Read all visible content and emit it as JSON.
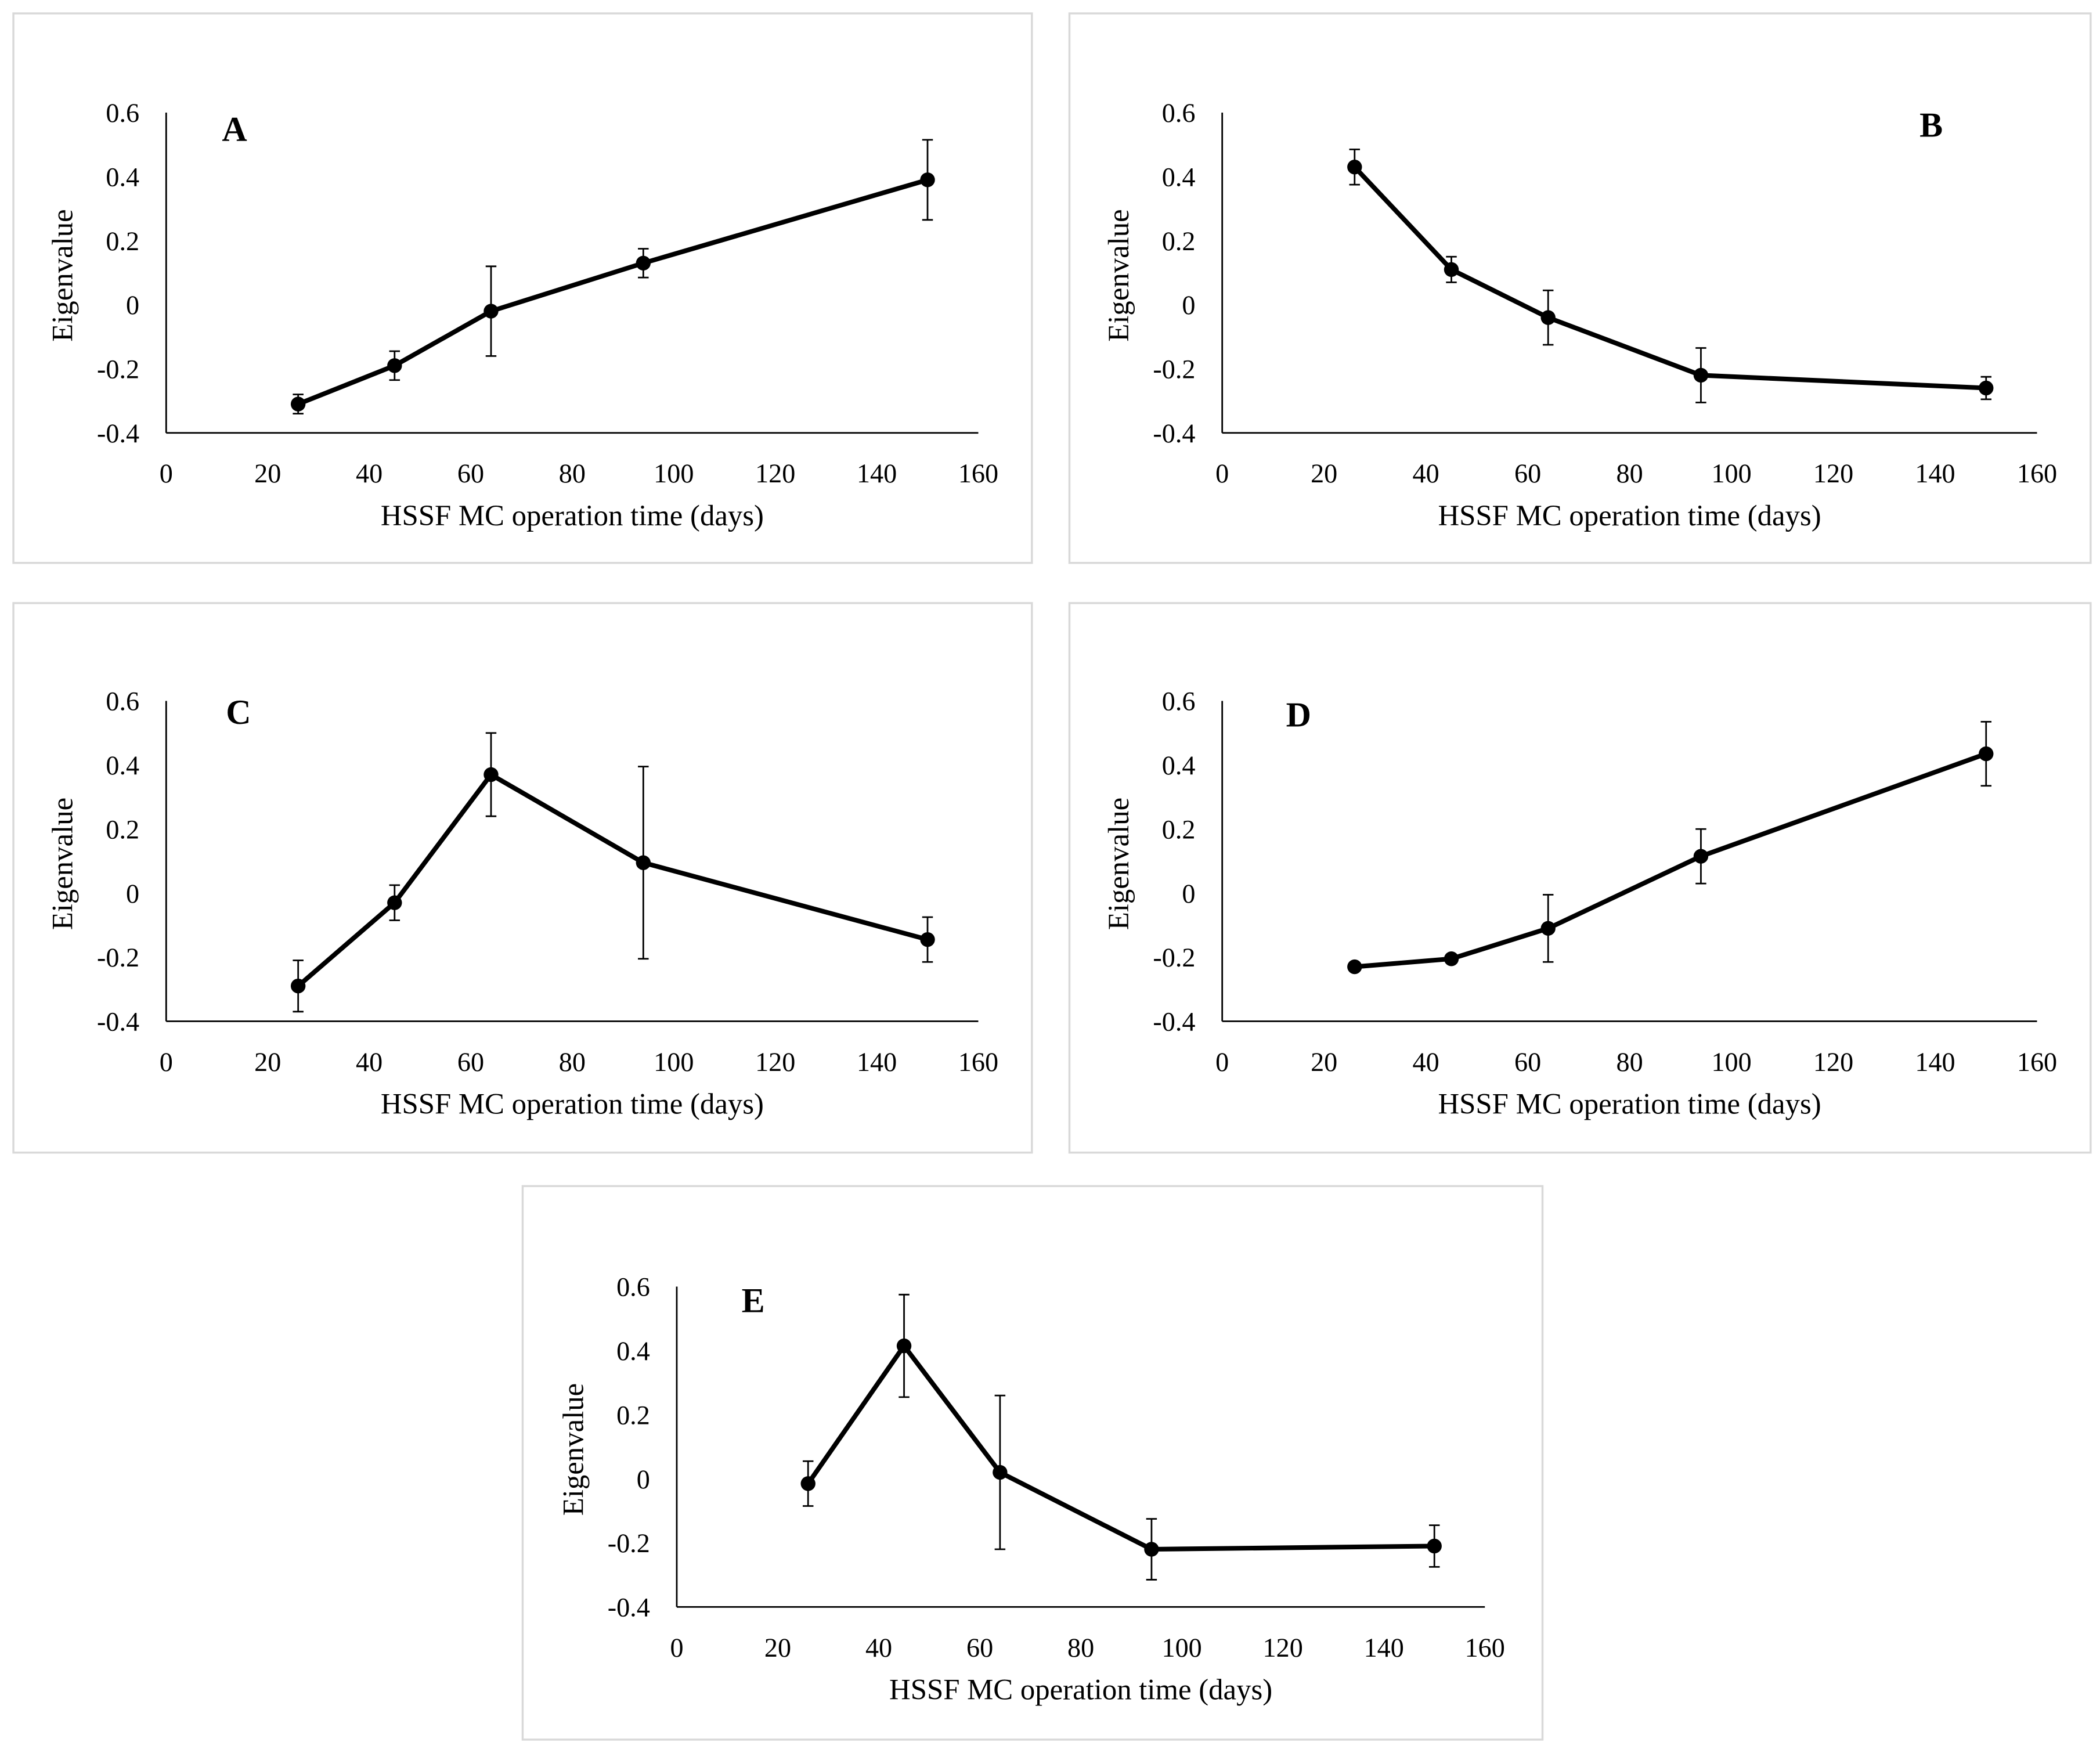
{
  "chart_data": [
    {
      "type": "line",
      "panel_label": "A",
      "x_label": "HSSF MC operation time (days)",
      "y_label": "Eigenvalue",
      "x": [
        26,
        45,
        64,
        94,
        150
      ],
      "values": [
        -0.31,
        -0.19,
        -0.02,
        0.13,
        0.39
      ],
      "errors": [
        0.03,
        0.045,
        0.14,
        0.045,
        0.125
      ],
      "color": "#000000",
      "xlim": [
        0,
        160
      ],
      "xticks": [
        0,
        20,
        40,
        60,
        80,
        100,
        120,
        140,
        160
      ],
      "ylim": [
        -0.4,
        0.6
      ],
      "yticks": [
        -0.4,
        -0.2,
        0,
        0.2,
        0.4,
        0.6
      ]
    },
    {
      "type": "line",
      "panel_label": "B",
      "x_label": "HSSF MC operation time (days)",
      "y_label": "Eigenvalue",
      "x": [
        26,
        45,
        64,
        94,
        150
      ],
      "values": [
        0.43,
        0.11,
        -0.04,
        -0.22,
        -0.26
      ],
      "errors": [
        0.055,
        0.04,
        0.085,
        0.085,
        0.035
      ],
      "color": "#000000",
      "xlim": [
        0,
        160
      ],
      "xticks": [
        0,
        20,
        40,
        60,
        80,
        100,
        120,
        140,
        160
      ],
      "ylim": [
        -0.4,
        0.6
      ],
      "yticks": [
        -0.4,
        -0.2,
        0,
        0.2,
        0.4,
        0.6
      ]
    },
    {
      "type": "line",
      "panel_label": "C",
      "x_label": "HSSF MC operation time (days)",
      "y_label": "Eigenvalue",
      "x": [
        26,
        45,
        64,
        94,
        150
      ],
      "values": [
        -0.29,
        -0.03,
        0.37,
        0.095,
        -0.145
      ],
      "errors": [
        0.08,
        0.055,
        0.13,
        0.3,
        0.07
      ],
      "color": "#000000",
      "xlim": [
        0,
        160
      ],
      "xticks": [
        0,
        20,
        40,
        60,
        80,
        100,
        120,
        140,
        160
      ],
      "ylim": [
        -0.4,
        0.6
      ],
      "yticks": [
        -0.4,
        -0.2,
        0,
        0.2,
        0.4,
        0.6
      ]
    },
    {
      "type": "line",
      "panel_label": "D",
      "x_label": "HSSF MC operation time (days)",
      "y_label": "Eigenvalue",
      "x": [
        26,
        45,
        64,
        94,
        150
      ],
      "values": [
        -0.23,
        -0.205,
        -0.11,
        0.115,
        0.435
      ],
      "errors": [
        0.01,
        0.01,
        0.105,
        0.085,
        0.1
      ],
      "color": "#000000",
      "xlim": [
        0,
        160
      ],
      "xticks": [
        0,
        20,
        40,
        60,
        80,
        100,
        120,
        140,
        160
      ],
      "ylim": [
        -0.4,
        0.6
      ],
      "yticks": [
        -0.4,
        -0.2,
        0,
        0.2,
        0.4,
        0.6
      ]
    },
    {
      "type": "line",
      "panel_label": "E",
      "x_label": "HSSF MC operation time (days)",
      "y_label": "Eigenvalue",
      "x": [
        26,
        45,
        64,
        94,
        150
      ],
      "values": [
        -0.015,
        0.415,
        0.02,
        -0.22,
        -0.21
      ],
      "errors": [
        0.07,
        0.16,
        0.24,
        0.095,
        0.065
      ],
      "color": "#000000",
      "xlim": [
        0,
        160
      ],
      "xticks": [
        0,
        20,
        40,
        60,
        80,
        100,
        120,
        140,
        160
      ],
      "ylim": [
        -0.4,
        0.6
      ],
      "yticks": [
        -0.4,
        -0.2,
        0,
        0.2,
        0.4,
        0.6
      ]
    }
  ]
}
